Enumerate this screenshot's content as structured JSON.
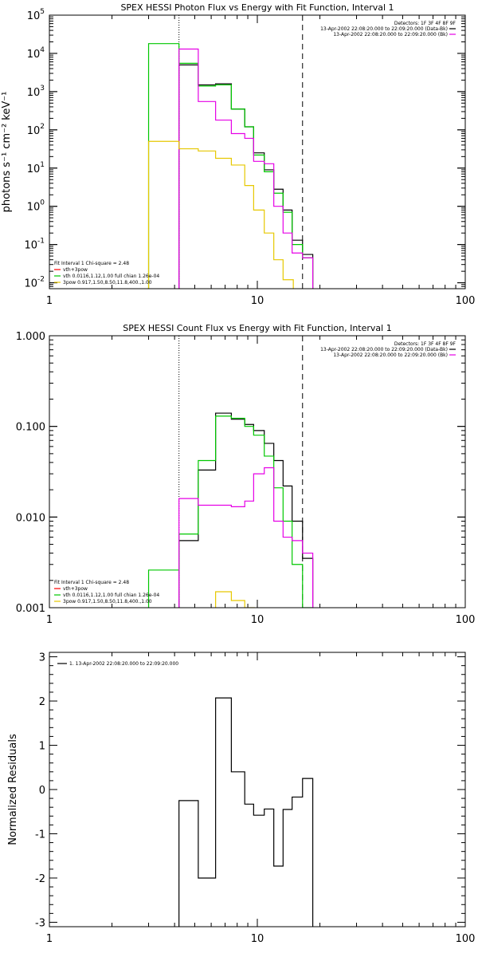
{
  "chart_data": [
    {
      "type": "line",
      "panel": "photon",
      "title": "SPEX HESSI Photon Flux vs Energy with Fit Function, Interval 1",
      "ylabel": "photons s⁻¹ cm⁻² keV⁻¹",
      "xscale": "log",
      "yscale": "log",
      "xlim": [
        1,
        100
      ],
      "ylim": [
        0.007,
        100000
      ],
      "x_ticks": [
        "1",
        "10",
        "100"
      ],
      "y_ticks": [
        {
          "value": 0.01,
          "mant": "10",
          "exp": "-2"
        },
        {
          "value": 0.1,
          "mant": "10",
          "exp": "-1"
        },
        {
          "value": 1,
          "mant": "10",
          "exp": "0"
        },
        {
          "value": 10,
          "mant": "10",
          "exp": "1"
        },
        {
          "value": 100,
          "mant": "10",
          "exp": "2"
        },
        {
          "value": 1000,
          "mant": "10",
          "exp": "3"
        },
        {
          "value": 10000,
          "mant": "10",
          "exp": "4"
        },
        {
          "value": 100000,
          "mant": "10",
          "exp": "5"
        }
      ],
      "vlines": [
        {
          "x": 4.2,
          "style": "dotted"
        },
        {
          "x": 16.5,
          "style": "dashed"
        }
      ],
      "header": [
        "Detectors: 1F 3F 4F 8F 9F",
        "13-Apr-2002 22:08:20.000 to 22:09:20.000 (Data-Bk)",
        "13-Apr-2002 22:08:20.000 to 22:09:20.000 (Bk)"
      ],
      "fit_info": {
        "heading": "Fit Interval 1     Chi-square = 2.48",
        "entries": [
          {
            "label": "vth+3pow",
            "color": "#ff0000"
          },
          {
            "label": "vth 0.0116,1.12,1.00  full chian 1.26e-04",
            "color": "#00c800"
          },
          {
            "label": "3pow 0.917,1.50,8.50,11.8,400.,1.00",
            "color": "#e6c800"
          }
        ]
      },
      "bin_edges": [
        3.0,
        4.2,
        5.2,
        6.3,
        7.5,
        8.7,
        9.6,
        10.8,
        12.0,
        13.3,
        14.7,
        16.5
      ],
      "series": [
        {
          "color": "#000000",
          "edge_values": [
            4.2,
            5.2,
            6.3,
            7.5,
            8.7,
            9.6,
            10.8,
            12.0,
            13.3,
            14.7,
            16.5
          ],
          "values": [
            5000,
            1500,
            1600,
            350,
            120,
            25,
            9,
            2.8,
            0.8,
            0.13,
            0.055
          ]
        },
        {
          "color": "#00c800",
          "edge_values": [
            3.0,
            4.2,
            5.2,
            6.3,
            7.5,
            8.7,
            9.6,
            10.8,
            12.0,
            13.3,
            14.7,
            16.5
          ],
          "values": [
            18000,
            5500,
            1400,
            1500,
            350,
            120,
            22,
            8,
            2.2,
            0.7,
            0.1,
            0.045
          ]
        },
        {
          "color": "#e600e6",
          "edge_values": [
            4.2,
            5.2,
            6.3,
            7.5,
            8.7,
            9.6,
            10.8,
            12.0,
            13.3,
            14.7,
            16.5
          ],
          "values": [
            13000,
            550,
            180,
            80,
            60,
            15,
            13,
            1,
            0.2,
            0.06,
            0.045
          ]
        },
        {
          "color": "#e6c800",
          "edge_values": [
            3.0,
            4.2,
            5.2,
            6.3,
            7.5,
            8.7,
            9.6,
            10.8,
            12.0,
            13.3
          ],
          "values": [
            50,
            32,
            28,
            18,
            12,
            3.5,
            0.8,
            0.2,
            0.04,
            0.012
          ]
        }
      ]
    },
    {
      "type": "line",
      "panel": "count",
      "title": "SPEX HESSI Count Flux vs Energy with Fit Function, Interval 1",
      "ylabel": "",
      "xscale": "log",
      "yscale": "log",
      "xlim": [
        1,
        100
      ],
      "ylim": [
        0.001,
        1
      ],
      "x_ticks": [
        "1",
        "10",
        "100"
      ],
      "y_ticks": [
        {
          "value": 0.001,
          "label": "0.001"
        },
        {
          "value": 0.01,
          "label": "0.010"
        },
        {
          "value": 0.1,
          "label": "0.100"
        },
        {
          "value": 1,
          "label": "1.000"
        }
      ],
      "vlines": [
        {
          "x": 4.2,
          "style": "dotted"
        },
        {
          "x": 16.5,
          "style": "dashed"
        }
      ],
      "header": [
        "Detectors: 1F 3F 4F 8F 9F",
        "13-Apr-2002 22:08:20.000 to 22:09:20.000 (Data-Bk)",
        "13-Apr-2002 22:08:20.000 to 22:09:20.000 (Bk)"
      ],
      "fit_info": {
        "heading": "Fit Interval 1     Chi-square = 2.48",
        "entries": [
          {
            "label": "vth+3pow",
            "color": "#ff0000"
          },
          {
            "label": "vth 0.0116,1.12,1.00  full chian 1.26e-04",
            "color": "#00c800"
          },
          {
            "label": "3pow 0.917,1.50,8.50,11.8,400.,1.00",
            "color": "#e6c800"
          }
        ]
      },
      "bin_edges": [
        3.0,
        4.2,
        5.2,
        6.3,
        7.5,
        8.7,
        9.6,
        10.8,
        12.0,
        13.3,
        14.7,
        16.5
      ],
      "series": [
        {
          "color": "#000000",
          "edge_values": [
            4.2,
            5.2,
            6.3,
            7.5,
            8.7,
            9.6,
            10.8,
            12.0,
            13.3,
            14.7,
            16.5
          ],
          "values": [
            0.0055,
            0.033,
            0.14,
            0.12,
            0.105,
            0.09,
            0.065,
            0.042,
            0.022,
            0.009,
            0.0035
          ]
        },
        {
          "color": "#00c800",
          "edge_values": [
            3.0,
            4.2,
            5.2,
            6.3,
            7.5,
            8.7,
            9.6,
            10.8,
            12.0,
            13.3,
            14.7,
            16.5
          ],
          "values": [
            0.0026,
            0.0065,
            0.042,
            0.13,
            0.123,
            0.1,
            0.08,
            0.047,
            0.021,
            0.009,
            0.003,
            0.001
          ]
        },
        {
          "color": "#e600e6",
          "edge_values": [
            4.2,
            5.2,
            6.3,
            7.5,
            8.7,
            9.6,
            10.8,
            12.0,
            13.3,
            14.7,
            16.5
          ],
          "values": [
            0.016,
            0.0135,
            0.0135,
            0.013,
            0.015,
            0.03,
            0.035,
            0.009,
            0.006,
            0.0055,
            0.004
          ]
        },
        {
          "color": "#e6c800",
          "edge_values": [
            6.3,
            7.5,
            8.7
          ],
          "values": [
            0.0015,
            0.0012,
            0.001
          ]
        }
      ]
    },
    {
      "type": "line",
      "panel": "residuals",
      "title": "",
      "ylabel": "Normalized Residuals",
      "xscale": "log",
      "yscale": "linear",
      "xlim": [
        1,
        100
      ],
      "ylim": [
        -3.1,
        3.1
      ],
      "x_ticks": [
        "1",
        "10",
        "100"
      ],
      "y_ticks": [
        {
          "value": -3,
          "label": "-3"
        },
        {
          "value": -2,
          "label": "-2"
        },
        {
          "value": -1,
          "label": "-1"
        },
        {
          "value": 0,
          "label": "0"
        },
        {
          "value": 1,
          "label": "1"
        },
        {
          "value": 2,
          "label": "2"
        },
        {
          "value": 3,
          "label": "3"
        }
      ],
      "legend": "1. 13-Apr-2002 22:08:20.000 to 22:09:20.000",
      "series": [
        {
          "color": "#000000",
          "edge_values": [
            4.2,
            5.2,
            6.3,
            7.5,
            8.7,
            9.6,
            10.8,
            12.0,
            13.3,
            14.7,
            16.5
          ],
          "values": [
            -0.25,
            -2.0,
            2.07,
            0.4,
            -0.33,
            -0.58,
            -0.44,
            -1.73,
            -0.45,
            -0.17,
            0.25
          ]
        }
      ]
    }
  ]
}
